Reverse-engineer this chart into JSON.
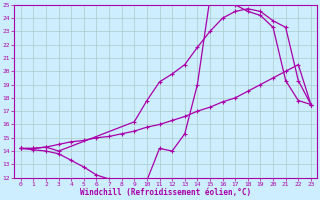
{
  "xlabel": "Windchill (Refroidissement éolien,°C)",
  "ylabel": "",
  "xlim": [
    -0.5,
    23.5
  ],
  "ylim": [
    12,
    25
  ],
  "yticks": [
    12,
    13,
    14,
    15,
    16,
    17,
    18,
    19,
    20,
    21,
    22,
    23,
    24,
    25
  ],
  "xticks": [
    0,
    1,
    2,
    3,
    4,
    5,
    6,
    7,
    8,
    9,
    10,
    11,
    12,
    13,
    14,
    15,
    16,
    17,
    18,
    19,
    20,
    21,
    22,
    23
  ],
  "bg_color": "#cceeff",
  "grid_color": "#aacccc",
  "line_color": "#aa00aa",
  "line1_x": [
    0,
    1,
    2,
    3,
    4,
    5,
    6,
    7,
    8,
    9,
    10,
    11,
    12,
    13,
    14,
    15,
    16,
    17,
    18,
    19,
    20,
    21,
    22,
    23
  ],
  "line1_y": [
    14.2,
    14.1,
    14.0,
    13.8,
    13.3,
    12.8,
    12.2,
    11.9,
    11.8,
    11.8,
    11.8,
    14.2,
    14.0,
    15.3,
    19.0,
    25.5,
    25.7,
    25.0,
    24.5,
    24.2,
    23.3,
    19.3,
    17.8,
    17.5
  ],
  "line2_x": [
    0,
    1,
    2,
    3,
    4,
    5,
    6,
    7,
    8,
    9,
    10,
    11,
    12,
    13,
    14,
    15,
    16,
    17,
    18,
    19,
    20,
    21,
    22,
    23
  ],
  "line2_y": [
    14.2,
    14.2,
    14.3,
    14.5,
    14.7,
    14.8,
    15.0,
    15.1,
    15.3,
    15.5,
    15.8,
    16.0,
    16.3,
    16.6,
    17.0,
    17.3,
    17.7,
    18.0,
    18.5,
    19.0,
    19.5,
    20.0,
    20.5,
    17.5
  ],
  "line3_x": [
    0,
    1,
    2,
    3,
    9,
    10,
    11,
    12,
    13,
    14,
    15,
    16,
    17,
    18,
    19,
    20,
    21,
    22,
    23
  ],
  "line3_y": [
    14.2,
    14.2,
    14.3,
    14.0,
    16.2,
    17.8,
    19.2,
    19.8,
    20.5,
    21.8,
    23.0,
    24.0,
    24.5,
    24.7,
    24.5,
    23.8,
    23.3,
    19.3,
    17.5
  ]
}
